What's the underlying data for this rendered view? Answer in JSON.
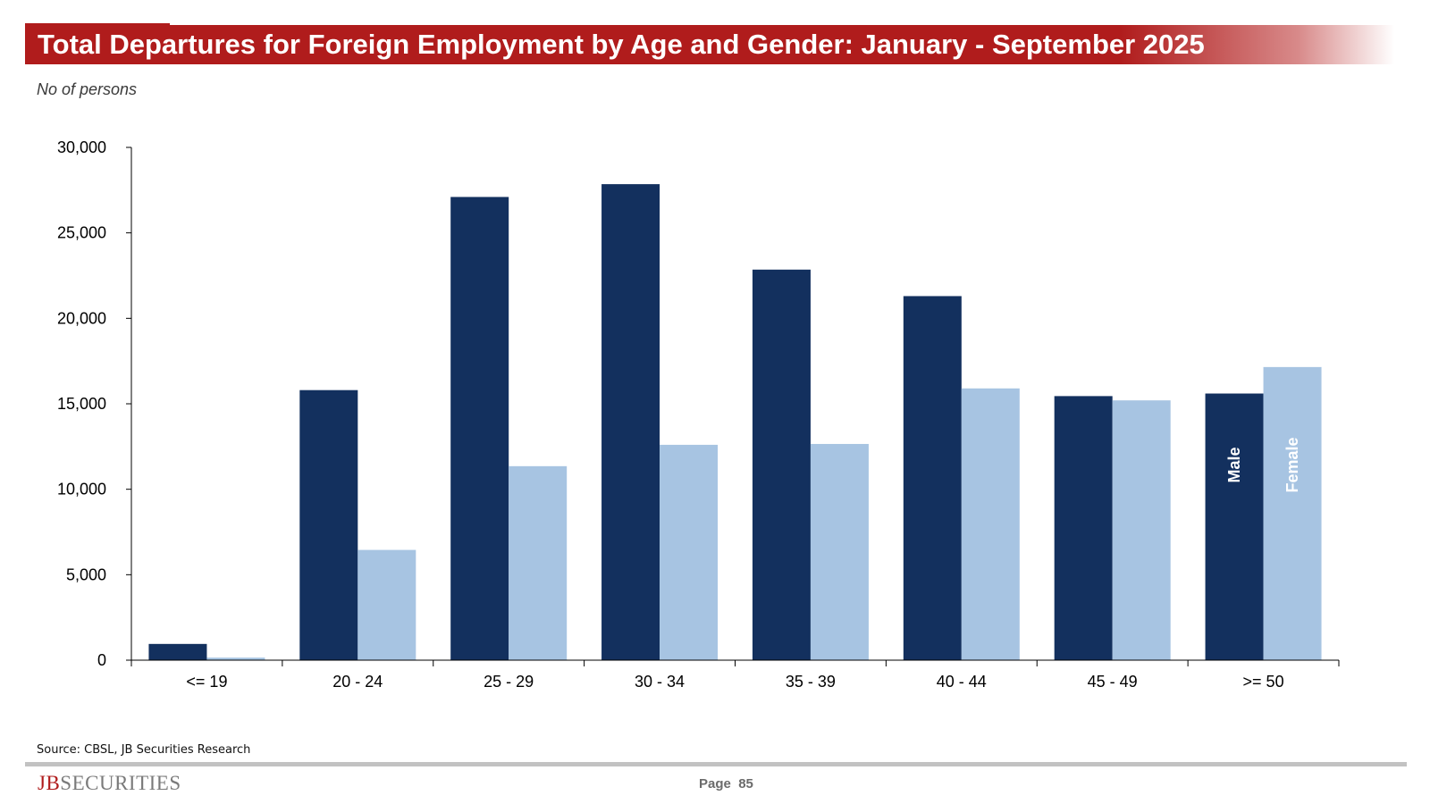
{
  "header": {
    "title": "Total Departures for Foreign Employment by Age and Gender: January - September 2025",
    "subtitle": "No of persons"
  },
  "chart_data": {
    "type": "bar",
    "categories": [
      "<= 19",
      "20 - 24",
      "25 - 29",
      "30 - 34",
      "35 - 39",
      "40 - 44",
      "45 - 49",
      ">= 50"
    ],
    "series": [
      {
        "name": "Male",
        "color": "#13305e",
        "values": [
          950,
          15800,
          27100,
          27850,
          22850,
          21300,
          15450,
          15600
        ]
      },
      {
        "name": "Female",
        "color": "#a7c4e2",
        "values": [
          150,
          6450,
          11350,
          12600,
          12650,
          15900,
          15200,
          17150
        ]
      }
    ],
    "ylim": [
      0,
      30000
    ],
    "yticks": [
      0,
      5000,
      10000,
      15000,
      20000,
      25000,
      30000
    ],
    "ytick_labels": [
      "0",
      "5,000",
      "10,000",
      "15,000",
      "20,000",
      "25,000",
      "30,000"
    ],
    "xlabel": "",
    "ylabel": "",
    "grid": false,
    "legend": "inside-last-bars"
  },
  "footer": {
    "source": "Source: CBSL, JB Securities Research",
    "logo_initials": "JB",
    "logo_rest": "SECURITIES",
    "page_label": "Page",
    "page_number": "85"
  }
}
